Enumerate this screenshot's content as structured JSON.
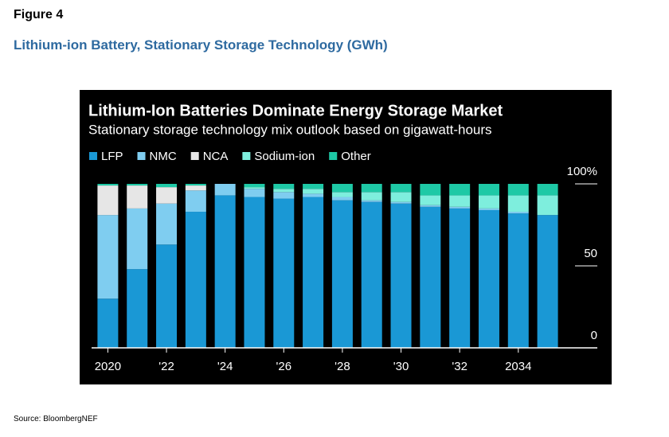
{
  "figure_label": "Figure 4",
  "heading": "Lithium-ion Battery, Stationary Storage Technology (GWh)",
  "source": "Source: BloombergNEF",
  "chart_data": {
    "type": "stacked-bar",
    "title": "Lithium-Ion Batteries Dominate Energy Storage Market",
    "subtitle": "Stationary storage technology mix outlook based on gigawatt-hours",
    "categories": [
      "2020",
      null,
      "'22",
      null,
      "'24",
      null,
      "'26",
      null,
      "'28",
      null,
      "'30",
      null,
      "'32",
      null,
      "2034",
      null
    ],
    "series": [
      {
        "name": "LFP",
        "color": "#1a98d5",
        "values": [
          30,
          48,
          63,
          83,
          93,
          92,
          91,
          92,
          90,
          89,
          88,
          86,
          85,
          84,
          82,
          81
        ]
      },
      {
        "name": "NMC",
        "color": "#7fcdf0",
        "values": [
          51,
          37,
          25,
          13,
          7,
          5,
          4,
          2,
          2,
          1,
          1,
          1,
          1,
          1,
          1,
          0
        ]
      },
      {
        "name": "NCA",
        "color": "#e6e6e6",
        "values": [
          18,
          14,
          10,
          3,
          0,
          0,
          0,
          0,
          0,
          0,
          0,
          0,
          0,
          0,
          0,
          0
        ]
      },
      {
        "name": "Sodium-ion",
        "color": "#7eeedd",
        "values": [
          0,
          0,
          0,
          0,
          0,
          1,
          2,
          3,
          3,
          5,
          6,
          6,
          7,
          8,
          10,
          12
        ]
      },
      {
        "name": "Other",
        "color": "#1ec9a6",
        "values": [
          1,
          1,
          2,
          1,
          0,
          2,
          3,
          3,
          5,
          5,
          5,
          7,
          7,
          7,
          7,
          7
        ]
      }
    ],
    "ylim": [
      0,
      100
    ],
    "yticks": [
      0,
      50,
      {
        "value": 100,
        "label": "100%"
      }
    ],
    "grid": false
  }
}
